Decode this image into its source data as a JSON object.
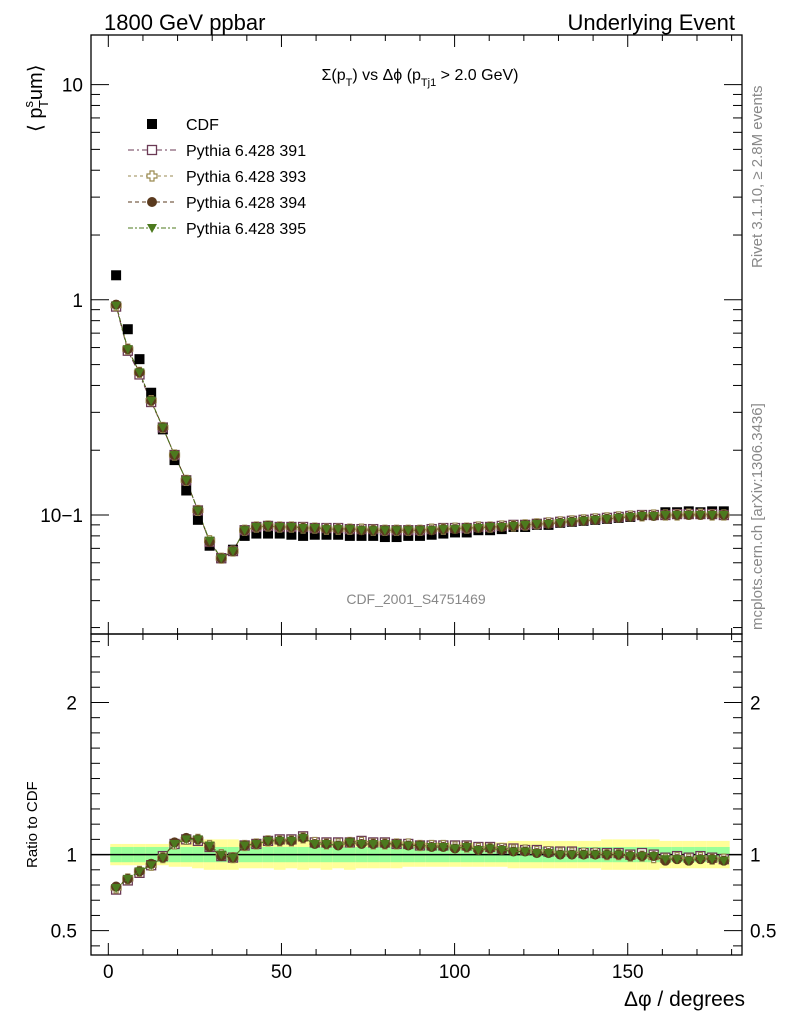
{
  "header": {
    "left": "1800 GeV ppbar",
    "right": "Underlying Event"
  },
  "side_labels": {
    "rivet": "Rivet 3.1.10, ≥ 2.8M events",
    "mcplots": "mcplots.cern.ch [arXiv:1306.3436]"
  },
  "watermark": "CDF_2001_S4751469",
  "chart_data": [
    {
      "type": "scatter",
      "title": "Σ(pT) vs Δφ (pTj1 > 2.0 GeV)",
      "ylabel": "⟨ p_T^sum ⟩",
      "xlabel": "",
      "yscale": "log",
      "xlim": [
        -5,
        183
      ],
      "ylim": [
        0.028,
        17
      ],
      "yticks": [
        {
          "value": 1,
          "label": "1"
        },
        {
          "value": 10,
          "label": "10"
        },
        {
          "value": 0.1,
          "label": "10−1"
        }
      ],
      "legend_position": "top-left",
      "x": [
        2.25,
        5.625,
        9.0,
        12.375,
        15.75,
        19.125,
        22.5,
        25.875,
        29.25,
        32.625,
        36.0,
        39.375,
        42.75,
        46.125,
        49.5,
        52.875,
        56.25,
        59.625,
        63.0,
        66.375,
        69.75,
        73.125,
        76.5,
        79.875,
        83.25,
        86.625,
        90.0,
        93.375,
        96.75,
        100.125,
        103.5,
        106.875,
        110.25,
        113.625,
        117.0,
        120.375,
        123.75,
        127.125,
        130.5,
        133.875,
        137.25,
        140.625,
        144.0,
        147.375,
        150.75,
        154.125,
        157.5,
        160.875,
        164.25,
        167.625,
        171.0,
        174.375,
        177.75
      ],
      "series": [
        {
          "name": "CDF",
          "marker": "filled-square",
          "color": "#000000",
          "values": [
            1.3,
            0.73,
            0.53,
            0.37,
            0.25,
            0.18,
            0.13,
            0.095,
            0.072,
            0.063,
            0.069,
            0.08,
            0.082,
            0.082,
            0.082,
            0.081,
            0.08,
            0.081,
            0.081,
            0.081,
            0.08,
            0.08,
            0.08,
            0.079,
            0.079,
            0.08,
            0.08,
            0.081,
            0.082,
            0.083,
            0.083,
            0.085,
            0.085,
            0.086,
            0.088,
            0.088,
            0.09,
            0.09,
            0.092,
            0.093,
            0.094,
            0.095,
            0.096,
            0.097,
            0.098,
            0.1,
            0.1,
            0.103,
            0.103,
            0.104,
            0.103,
            0.104,
            0.104
          ]
        },
        {
          "name": "Pythia 6.428 391",
          "marker": "open-square",
          "color": "#6b3a55",
          "values": [
            0.93,
            0.58,
            0.45,
            0.335,
            0.255,
            0.19,
            0.145,
            0.105,
            0.075,
            0.063,
            0.068,
            0.085,
            0.088,
            0.089,
            0.088,
            0.088,
            0.088,
            0.087,
            0.087,
            0.087,
            0.086,
            0.086,
            0.086,
            0.085,
            0.085,
            0.085,
            0.085,
            0.086,
            0.087,
            0.087,
            0.087,
            0.088,
            0.088,
            0.089,
            0.09,
            0.09,
            0.091,
            0.092,
            0.093,
            0.094,
            0.095,
            0.096,
            0.097,
            0.098,
            0.099,
            0.1,
            0.1,
            0.1,
            0.101,
            0.101,
            0.101,
            0.101,
            0.1
          ]
        },
        {
          "name": "Pythia 6.428 393",
          "marker": "open-cross",
          "color": "#9a8a50",
          "values": [
            0.94,
            0.59,
            0.46,
            0.34,
            0.255,
            0.19,
            0.145,
            0.105,
            0.076,
            0.063,
            0.068,
            0.085,
            0.088,
            0.089,
            0.088,
            0.088,
            0.087,
            0.087,
            0.086,
            0.086,
            0.086,
            0.086,
            0.085,
            0.085,
            0.085,
            0.085,
            0.085,
            0.086,
            0.086,
            0.087,
            0.087,
            0.088,
            0.088,
            0.089,
            0.089,
            0.09,
            0.091,
            0.092,
            0.093,
            0.094,
            0.095,
            0.096,
            0.097,
            0.098,
            0.099,
            0.099,
            0.1,
            0.1,
            0.1,
            0.101,
            0.101,
            0.1,
            0.1
          ]
        },
        {
          "name": "Pythia 6.428 394",
          "marker": "filled-circle",
          "color": "#5a3a1e",
          "values": [
            0.95,
            0.59,
            0.46,
            0.34,
            0.255,
            0.19,
            0.145,
            0.105,
            0.075,
            0.063,
            0.068,
            0.085,
            0.088,
            0.089,
            0.088,
            0.088,
            0.087,
            0.087,
            0.086,
            0.086,
            0.086,
            0.085,
            0.085,
            0.085,
            0.085,
            0.085,
            0.085,
            0.085,
            0.086,
            0.086,
            0.087,
            0.087,
            0.088,
            0.088,
            0.089,
            0.09,
            0.091,
            0.091,
            0.092,
            0.093,
            0.094,
            0.095,
            0.096,
            0.097,
            0.098,
            0.099,
            0.099,
            0.1,
            0.1,
            0.1,
            0.1,
            0.1,
            0.1
          ]
        },
        {
          "name": "Pythia 6.428 395",
          "marker": "filled-triangle-down",
          "color": "#4c7a1e",
          "values": [
            0.94,
            0.59,
            0.46,
            0.34,
            0.255,
            0.19,
            0.145,
            0.105,
            0.076,
            0.063,
            0.068,
            0.085,
            0.088,
            0.089,
            0.088,
            0.088,
            0.087,
            0.087,
            0.086,
            0.086,
            0.086,
            0.085,
            0.085,
            0.085,
            0.085,
            0.085,
            0.085,
            0.085,
            0.086,
            0.086,
            0.087,
            0.087,
            0.088,
            0.088,
            0.089,
            0.09,
            0.091,
            0.091,
            0.092,
            0.093,
            0.094,
            0.095,
            0.096,
            0.097,
            0.098,
            0.099,
            0.099,
            0.1,
            0.1,
            0.1,
            0.1,
            0.1,
            0.1
          ]
        }
      ]
    },
    {
      "type": "scatter",
      "title": "",
      "ylabel": "Ratio to CDF",
      "xlabel": "Δφ / degrees",
      "xlim": [
        -5,
        183
      ],
      "ylim": [
        0.34,
        2.45
      ],
      "xticks": [
        {
          "value": 0,
          "label": "0"
        },
        {
          "value": 50,
          "label": "50"
        },
        {
          "value": 100,
          "label": "100"
        },
        {
          "value": 150,
          "label": "150"
        }
      ],
      "yticks": [
        {
          "value": 0.5,
          "label": "0.5"
        },
        {
          "value": 1,
          "label": "1"
        },
        {
          "value": 2,
          "label": "2"
        }
      ],
      "band_inner_halfwidth": [
        0.05,
        0.05,
        0.05,
        0.05,
        0.05,
        0.05,
        0.05,
        0.05,
        0.05,
        0.05,
        0.05,
        0.05,
        0.05,
        0.05,
        0.05,
        0.05,
        0.05,
        0.05,
        0.05,
        0.05,
        0.05,
        0.05,
        0.05,
        0.05,
        0.05,
        0.05,
        0.05,
        0.05,
        0.05,
        0.05,
        0.05,
        0.05,
        0.05,
        0.05,
        0.05,
        0.05,
        0.05,
        0.05,
        0.05,
        0.05,
        0.05,
        0.05,
        0.05,
        0.05,
        0.05,
        0.05,
        0.05,
        0.05,
        0.05,
        0.05,
        0.05,
        0.05,
        0.05
      ],
      "band_outer_halfwidth": [
        0.07,
        0.07,
        0.07,
        0.07,
        0.07,
        0.08,
        0.08,
        0.09,
        0.1,
        0.1,
        0.1,
        0.09,
        0.09,
        0.09,
        0.1,
        0.09,
        0.1,
        0.09,
        0.1,
        0.09,
        0.1,
        0.09,
        0.09,
        0.09,
        0.09,
        0.08,
        0.08,
        0.08,
        0.08,
        0.08,
        0.08,
        0.08,
        0.08,
        0.08,
        0.09,
        0.09,
        0.09,
        0.09,
        0.09,
        0.09,
        0.09,
        0.09,
        0.1,
        0.1,
        0.1,
        0.1,
        0.1,
        0.09,
        0.09,
        0.09,
        0.09,
        0.09,
        0.09
      ],
      "series": [
        {
          "name": "Pythia 6.428 391",
          "values": [
            0.77,
            0.83,
            0.88,
            0.93,
            0.99,
            1.07,
            1.1,
            1.09,
            1.05,
            0.99,
            0.98,
            1.06,
            1.07,
            1.09,
            1.1,
            1.1,
            1.12,
            1.08,
            1.08,
            1.08,
            1.08,
            1.09,
            1.08,
            1.08,
            1.07,
            1.07,
            1.06,
            1.06,
            1.06,
            1.06,
            1.06,
            1.05,
            1.05,
            1.04,
            1.04,
            1.03,
            1.03,
            1.02,
            1.02,
            1.02,
            1.01,
            1.01,
            1.01,
            1.01,
            1.0,
            1.01,
            1.0,
            0.98,
            0.99,
            0.98,
            0.99,
            0.98,
            0.97
          ]
        },
        {
          "name": "Pythia 6.428 393",
          "values": [
            0.78,
            0.84,
            0.89,
            0.93,
            0.98,
            1.07,
            1.1,
            1.1,
            1.06,
            1.0,
            0.98,
            1.06,
            1.07,
            1.09,
            1.09,
            1.09,
            1.11,
            1.08,
            1.07,
            1.07,
            1.08,
            1.08,
            1.07,
            1.07,
            1.07,
            1.07,
            1.06,
            1.06,
            1.06,
            1.05,
            1.05,
            1.04,
            1.04,
            1.04,
            1.03,
            1.03,
            1.02,
            1.02,
            1.01,
            1.01,
            1.01,
            1.01,
            1.0,
            1.0,
            0.99,
            0.99,
            0.98,
            0.97,
            0.98,
            0.97,
            0.98,
            0.97,
            0.97
          ]
        },
        {
          "name": "Pythia 6.428 394",
          "values": [
            0.79,
            0.84,
            0.89,
            0.94,
            0.98,
            1.08,
            1.11,
            1.1,
            1.05,
            0.99,
            0.98,
            1.06,
            1.07,
            1.09,
            1.09,
            1.09,
            1.11,
            1.07,
            1.07,
            1.06,
            1.08,
            1.07,
            1.07,
            1.07,
            1.07,
            1.06,
            1.06,
            1.05,
            1.05,
            1.04,
            1.05,
            1.03,
            1.04,
            1.03,
            1.02,
            1.02,
            1.01,
            1.01,
            1.0,
            1.0,
            1.0,
            1.0,
            1.0,
            1.0,
            0.99,
            0.99,
            0.99,
            0.96,
            0.97,
            0.96,
            0.97,
            0.97,
            0.96
          ]
        },
        {
          "name": "Pythia 6.428 395",
          "values": [
            0.78,
            0.84,
            0.89,
            0.93,
            0.98,
            1.07,
            1.1,
            1.1,
            1.06,
            1.0,
            0.98,
            1.06,
            1.07,
            1.09,
            1.09,
            1.09,
            1.11,
            1.07,
            1.07,
            1.06,
            1.08,
            1.07,
            1.07,
            1.07,
            1.07,
            1.06,
            1.06,
            1.05,
            1.05,
            1.04,
            1.05,
            1.03,
            1.04,
            1.03,
            1.02,
            1.02,
            1.01,
            1.01,
            1.0,
            1.0,
            1.0,
            1.0,
            1.0,
            1.0,
            0.99,
            0.99,
            0.99,
            0.97,
            0.97,
            0.96,
            0.97,
            0.97,
            0.96
          ]
        }
      ]
    }
  ]
}
